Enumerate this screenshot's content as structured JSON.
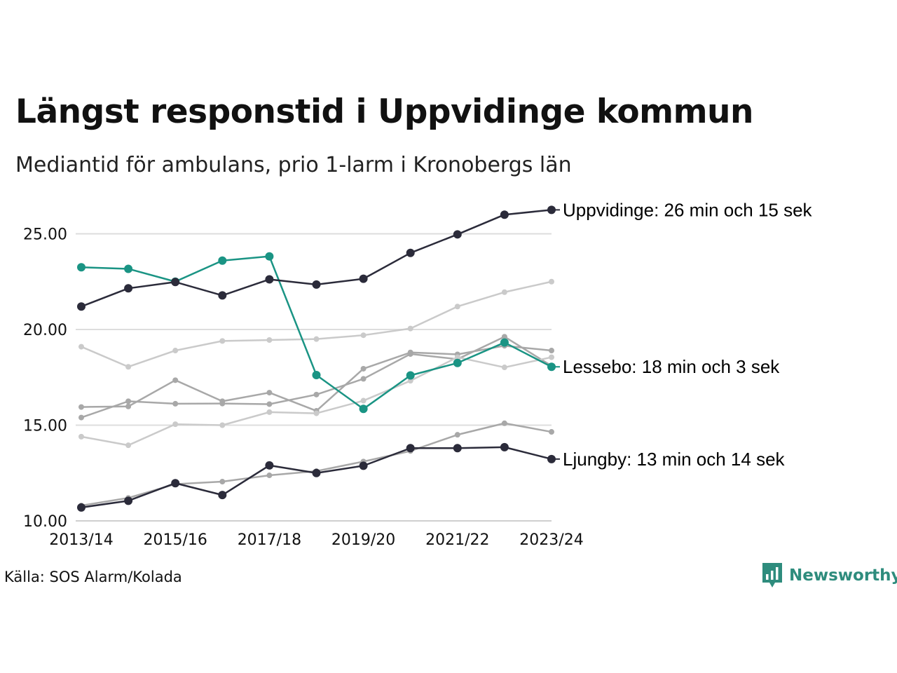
{
  "title": "Längst responstid i Uppvidinge kommun",
  "subtitle": "Mediantid för ambulans, prio 1-larm i Kronobergs län",
  "source": "Källa: SOS Alarm/Kolada",
  "brand": {
    "name": "Newsworthy",
    "icon": "newsworthy-logo-icon",
    "color": "#2e8c7d"
  },
  "colors": {
    "uppvidinge": "#2b2b3a",
    "lessebo": "#1a9484",
    "ljungby": "#2b2b3a",
    "other_dark": "#a8a8a8",
    "other_light": "#cacaca",
    "grid": "#dddddd"
  },
  "chart_data": {
    "type": "line",
    "x": [
      "2013/14",
      "2014/15",
      "2015/16",
      "2016/17",
      "2017/18",
      "2018/19",
      "2019/20",
      "2020/21",
      "2021/22",
      "2022/23",
      "2023/24"
    ],
    "x_tick_labels": [
      "2013/14",
      "2015/16",
      "2017/18",
      "2019/20",
      "2021/22",
      "2023/24"
    ],
    "y_ticks": [
      "10.00",
      "15.00",
      "20.00",
      "25.00"
    ],
    "ylim": [
      10,
      26.5
    ],
    "grid": true,
    "series": [
      {
        "key": "other1",
        "style": "other_light",
        "values": [
          19.1,
          18.05,
          18.9,
          19.4,
          19.45,
          19.5,
          19.7,
          20.05,
          21.2,
          21.95,
          22.5
        ]
      },
      {
        "key": "other2",
        "style": "other_dark",
        "values": [
          15.95,
          15.98,
          17.35,
          16.25,
          16.7,
          15.75,
          17.95,
          18.8,
          18.7,
          19.15,
          18.9
        ]
      },
      {
        "key": "other3",
        "style": "other_dark",
        "values": [
          15.4,
          16.25,
          16.12,
          16.13,
          16.1,
          16.6,
          17.42,
          18.72,
          18.45,
          19.62,
          18.1
        ]
      },
      {
        "key": "other4",
        "style": "other_light",
        "values": [
          14.4,
          13.95,
          15.05,
          15.0,
          15.68,
          15.62,
          16.28,
          17.32,
          18.55,
          18.02,
          18.55
        ]
      },
      {
        "key": "other5",
        "style": "other_dark",
        "values": [
          10.8,
          11.2,
          11.92,
          12.05,
          12.38,
          12.6,
          13.1,
          13.65,
          14.5,
          15.1,
          14.65
        ]
      },
      {
        "key": "lessebo",
        "name": "Lessebo",
        "style": "lessebo",
        "values": [
          23.25,
          23.17,
          22.5,
          23.6,
          23.82,
          17.62,
          15.85,
          17.6,
          18.25,
          19.32,
          18.05
        ],
        "end_label": "Lessebo: 18 min och 3 sek"
      },
      {
        "key": "ljungby",
        "name": "Ljungby",
        "style": "ljungby",
        "values": [
          10.7,
          11.05,
          11.97,
          11.35,
          12.9,
          12.5,
          12.88,
          13.8,
          13.8,
          13.85,
          13.23
        ],
        "end_label": "Ljungby: 13 min och 14 sek"
      },
      {
        "key": "uppvidinge",
        "name": "Uppvidinge",
        "style": "uppvidinge",
        "values": [
          21.2,
          22.15,
          22.48,
          21.78,
          22.62,
          22.35,
          22.65,
          24.0,
          24.97,
          26.0,
          26.25
        ],
        "end_label": "Uppvidinge: 26 min och 15 sek"
      }
    ]
  }
}
